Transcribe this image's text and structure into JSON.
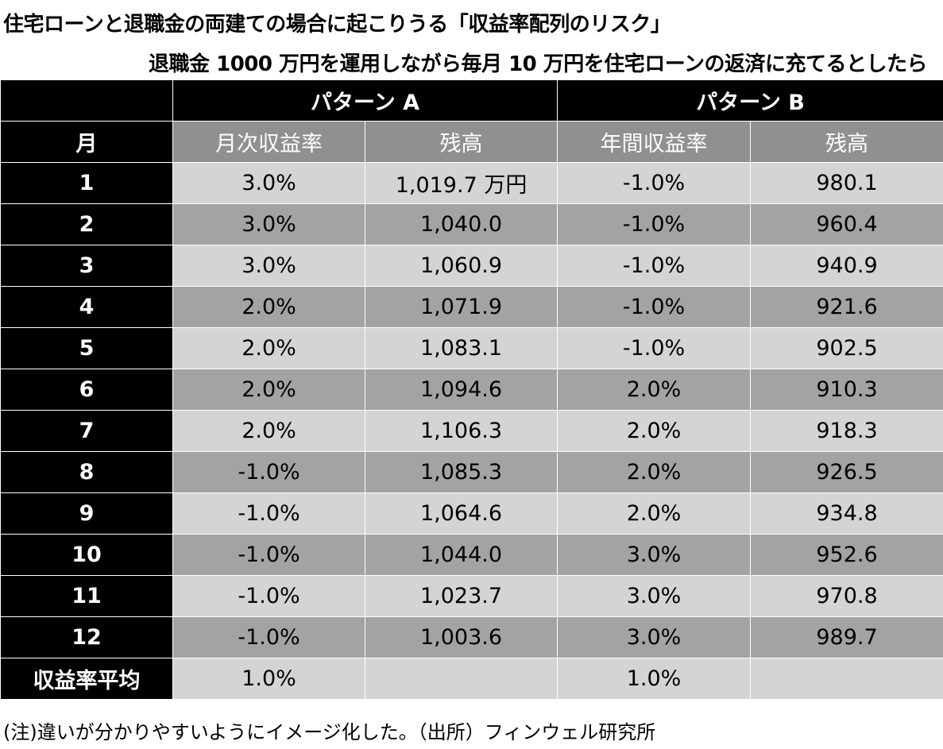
{
  "title": "住宅ローンと退職金の両建ての場合に起こりうる「収益率配列のリスク」",
  "subtitle": "退職金 1000 万円を運用しながら毎月 10 万円を住宅ローンの返済に充てるとしたら",
  "table": {
    "pattern_a": "パターン A",
    "pattern_b": "パターン B",
    "headers": {
      "month": "月",
      "a_rate": "月次収益率",
      "a_balance": "残高",
      "b_rate": "年間収益率",
      "b_balance": "残高"
    },
    "rows": [
      {
        "month": "1",
        "a_rate": "3.0%",
        "a_balance": "1,019.7 万円",
        "b_rate": "-1.0%",
        "b_balance": "980.1"
      },
      {
        "month": "2",
        "a_rate": "3.0%",
        "a_balance": "1,040.0",
        "b_rate": "-1.0%",
        "b_balance": "960.4"
      },
      {
        "month": "3",
        "a_rate": "3.0%",
        "a_balance": "1,060.9",
        "b_rate": "-1.0%",
        "b_balance": "940.9"
      },
      {
        "month": "4",
        "a_rate": "2.0%",
        "a_balance": "1,071.9",
        "b_rate": "-1.0%",
        "b_balance": "921.6"
      },
      {
        "month": "5",
        "a_rate": "2.0%",
        "a_balance": "1,083.1",
        "b_rate": "-1.0%",
        "b_balance": "902.5"
      },
      {
        "month": "6",
        "a_rate": "2.0%",
        "a_balance": "1,094.6",
        "b_rate": "2.0%",
        "b_balance": "910.3"
      },
      {
        "month": "7",
        "a_rate": "2.0%",
        "a_balance": "1,106.3",
        "b_rate": "2.0%",
        "b_balance": "918.3"
      },
      {
        "month": "8",
        "a_rate": "-1.0%",
        "a_balance": "1,085.3",
        "b_rate": "2.0%",
        "b_balance": "926.5"
      },
      {
        "month": "9",
        "a_rate": "-1.0%",
        "a_balance": "1,064.6",
        "b_rate": "2.0%",
        "b_balance": "934.8"
      },
      {
        "month": "10",
        "a_rate": "-1.0%",
        "a_balance": "1,044.0",
        "b_rate": "3.0%",
        "b_balance": "952.6"
      },
      {
        "month": "11",
        "a_rate": "-1.0%",
        "a_balance": "1,023.7",
        "b_rate": "3.0%",
        "b_balance": "970.8"
      },
      {
        "month": "12",
        "a_rate": "-1.0%",
        "a_balance": "1,003.6",
        "b_rate": "3.0%",
        "b_balance": "989.7"
      }
    ],
    "average": {
      "label": "収益率平均",
      "a_rate": "1.0%",
      "a_balance": "",
      "b_rate": "1.0%",
      "b_balance": ""
    }
  },
  "note": "(注)違いが分かりやすいようにイメージ化した。（出所）フィンウェル研究所",
  "colors": {
    "header_black": "#000000",
    "column_header_gray": "#909090",
    "row_light": "#d4d4d4",
    "row_dark": "#a3a3a3"
  }
}
